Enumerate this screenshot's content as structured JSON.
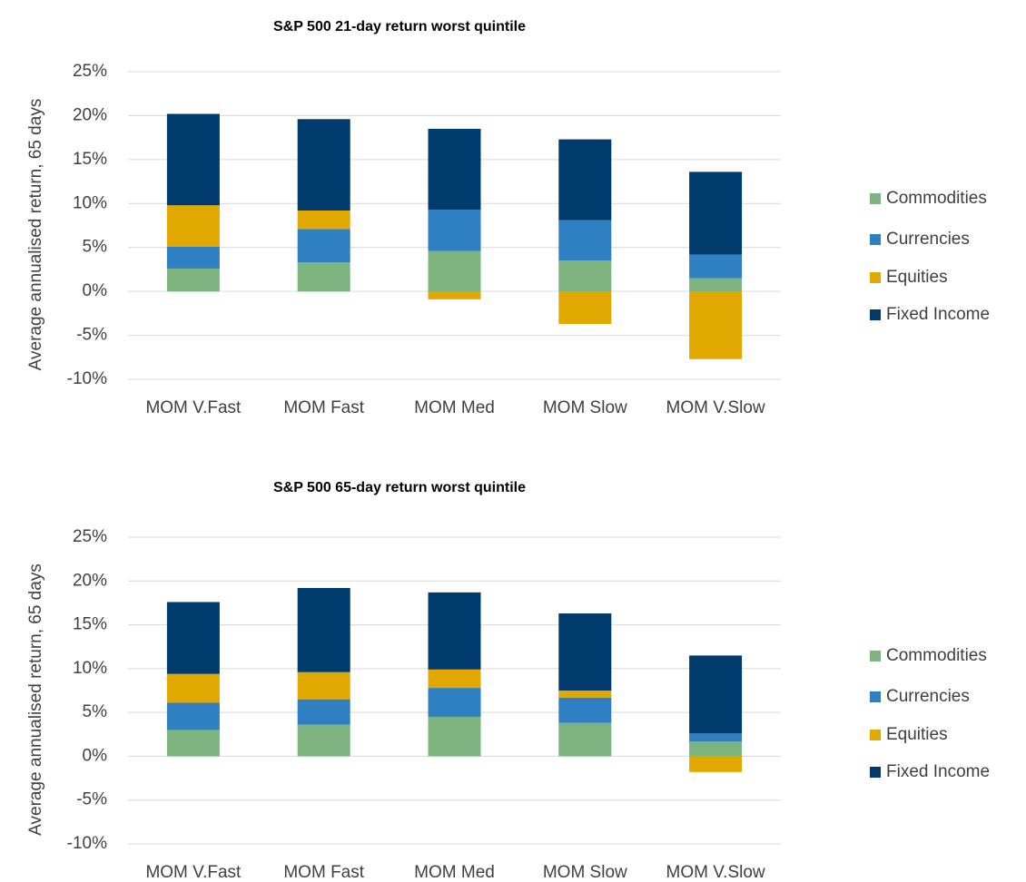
{
  "chart_data": [
    {
      "type": "stacked-bar",
      "title": "S&P 500 21-day return worst quintile",
      "y_label": "Average annualised return, 65 days",
      "categories": [
        "MOM V.Fast",
        "MOM Fast",
        "MOM Med",
        "MOM Slow",
        "MOM V.Slow"
      ],
      "series": [
        {
          "name": "Commodities",
          "color": "#7db37f",
          "values": [
            2.6,
            3.3,
            4.6,
            3.5,
            1.5
          ]
        },
        {
          "name": "Currencies",
          "color": "#2e80c3",
          "values": [
            2.5,
            3.8,
            4.7,
            4.6,
            2.7
          ]
        },
        {
          "name": "Equities",
          "color": "#e0a800",
          "values": [
            4.7,
            2.1,
            -0.9,
            -3.7,
            -7.7
          ]
        },
        {
          "name": "Fixed Income",
          "color": "#003b6b",
          "values": [
            10.4,
            10.4,
            9.2,
            9.2,
            9.4
          ]
        }
      ],
      "ylim": [
        -10,
        25
      ],
      "yticks": [
        {
          "value": -10,
          "label": "-10%"
        },
        {
          "value": -5,
          "label": "-5%"
        },
        {
          "value": 0,
          "label": "0%"
        },
        {
          "value": 5,
          "label": "5%"
        },
        {
          "value": 10,
          "label": "10%"
        },
        {
          "value": 15,
          "label": "15%"
        },
        {
          "value": 20,
          "label": "20%"
        },
        {
          "value": 25,
          "label": "25%"
        }
      ],
      "grid": true,
      "legend": "right"
    },
    {
      "type": "stacked-bar",
      "title": "S&P 500 65-day return worst quintile",
      "y_label": "Average annualised return, 65 days",
      "categories": [
        "MOM V.Fast",
        "MOM Fast",
        "MOM Med",
        "MOM Slow",
        "MOM V.Slow"
      ],
      "series": [
        {
          "name": "Commodities",
          "color": "#7db37f",
          "values": [
            3.0,
            3.6,
            4.5,
            3.8,
            1.7
          ]
        },
        {
          "name": "Currencies",
          "color": "#2e80c3",
          "values": [
            3.1,
            2.9,
            3.3,
            2.9,
            0.9
          ]
        },
        {
          "name": "Equities",
          "color": "#e0a800",
          "values": [
            3.3,
            3.1,
            2.1,
            0.8,
            -1.8
          ]
        },
        {
          "name": "Fixed Income",
          "color": "#003b6b",
          "values": [
            8.2,
            9.6,
            8.8,
            8.8,
            8.9
          ]
        }
      ],
      "ylim": [
        -10,
        25
      ],
      "yticks": [
        {
          "value": -10,
          "label": "-10%"
        },
        {
          "value": -5,
          "label": "-5%"
        },
        {
          "value": 0,
          "label": "0%"
        },
        {
          "value": 5,
          "label": "5%"
        },
        {
          "value": 10,
          "label": "10%"
        },
        {
          "value": 15,
          "label": "15%"
        },
        {
          "value": 20,
          "label": "20%"
        },
        {
          "value": 25,
          "label": "25%"
        }
      ],
      "grid": true,
      "legend": "right"
    }
  ]
}
